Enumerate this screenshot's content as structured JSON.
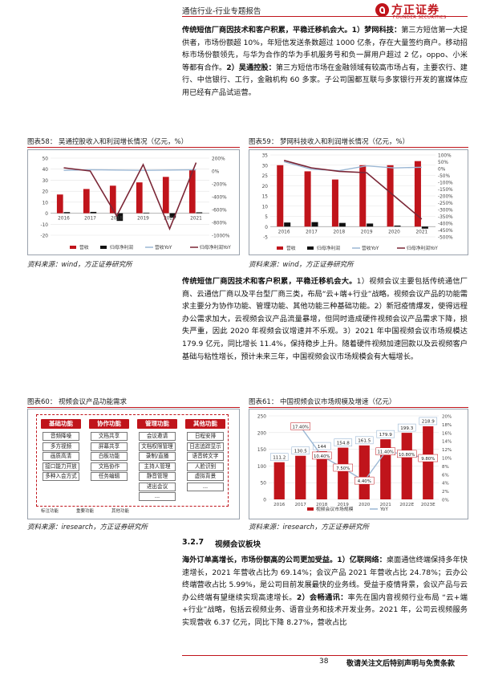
{
  "header": {
    "title": "通信行业-行业专题报告",
    "logo_cn": "方正证券",
    "logo_en": "FOUNDER SECURITIES"
  },
  "para1": {
    "lead": "传统短信厂商因技术和客户积累，平稳迁移机会大。1）梦网科技：",
    "body": "第三方短信第一大提供者，市场份额超 10%，年短信发送条数超过 1000 亿条，存在大量签约商户。移动招标市场份额领先，与华为合作的华为手机服务号和负一屏用户超过 2 亿，oppo、小米等都有合作。",
    "lead2": "2）吴通控股：",
    "body2": "第三方短信市场在金融领域有较高市场占有，主要农行、建行、中信银行、工行，金融机构 60 多家。子公司国都互联与多家银行开发的富媒体应用已经有产品试运营。"
  },
  "fig58": {
    "title": "图表58：  吴通控股收入和利润增长情况（亿元，%）",
    "source": "资料来源：wind，方正证券研究所"
  },
  "fig59": {
    "title": "图表59：  梦网科技收入和利润增长情况（亿元，%）",
    "source": "资料来源：wind，方正证券研究所"
  },
  "para2": {
    "lead": "传统短信厂商因技术和客户积累，平稳迁移机会大。",
    "body": "1）视频会议主要包括传统通信厂商、云通信厂商以及平台型厂商三类，布局“云+端+行业”战略。视频会议产品的功能需求主要分为协作功能、管理功能、其他功能三种基础功能。2）新冠疫情爆发，使得远程办公需求加大，云视频会议产品流量暴增，但同时造成硬件视频会议产品需求下降，损失严重，因此 2020 年视频会议增速并不乐观。3）2021 年中国视频会议市场规模达 179.9 亿元，同比增长 11.4%，保持稳步上升。随着硬件视频加速回款以及云视频客户基础与粘性增长，预计未来三年，中国视频会议市场规模会有大幅增长。"
  },
  "fig60": {
    "title": "图表60：  视频会议产品功能需求",
    "source": "资料来源：iresearch，方正证券研究所",
    "root": "基础功能",
    "columns": [
      {
        "head": "基础功能",
        "items": [
          "音频降噪",
          "多方视频",
          "画质高清",
          "接口能力开放",
          "多种入会方式"
        ]
      },
      {
        "head": "协作功能",
        "items": [
          "文档共享",
          "屏幕共享",
          "白板功能",
          "文档协作",
          "任务编辑"
        ]
      },
      {
        "head": "管理功能",
        "items": [
          "会议邀请",
          "文档权限管理",
          "录制/直播",
          "主持人管理",
          "静音管理",
          "进出会议",
          "..."
        ]
      },
      {
        "head": "其他功能",
        "items": [
          "日程安排",
          "日志追踪显示",
          "语音转文字",
          "人脸识别",
          "虚拟背景",
          "..."
        ]
      }
    ],
    "legend_a": "标注功能",
    "legend_b": "重要功能",
    "legend_c": "其他功能"
  },
  "fig61": {
    "title": "图表61：  中国视频会议市场规模及增速（亿元）",
    "source": "资料来源：iresearch，方正证券研究所"
  },
  "section": {
    "number": "3.2.7",
    "name": "视频会议板块"
  },
  "para3": {
    "lead": "海外订单高增长，市场份额高的公司更加受益。1）亿联网络：",
    "body": "桌面通信终端保持多年快速增长，2021 年营收占比为 69.14%；会议产品 2021 年营收占比 24.78%；云办公终端营收占比 5.99%，是公司目前发展最快的业务线。受益于疫情背景，会议产品与云办公终端有望继续实现高速增长。",
    "lead2": "2）会畅通讯：",
    "body2": "率先在国内音视频行业布局 “云+端+行业”战略，包括云视频业务、语音业务和技术开发业务。2021 年，公司云视频服务实现营收 6.37 亿元，同比下降 8.27%，营收占比"
  },
  "footer": {
    "page": "38",
    "note": "敬请关注文后特别声明与免责条款"
  },
  "chart_data": [
    {
      "id": "fig58",
      "type": "bar",
      "categories": [
        "2016",
        "2017",
        "2018",
        "2019",
        "2020",
        "2021"
      ],
      "y_left_ticks": [
        "50",
        "40",
        "30",
        "20",
        "10",
        "0",
        "-10",
        "-20"
      ],
      "y_right_ticks": [
        "200%",
        "0%",
        "-200%",
        "-400%",
        "-600%",
        "-800%",
        "-1000%"
      ],
      "ylim_left": [
        -20,
        50
      ],
      "ylim_right": [
        -1000,
        200
      ],
      "series": [
        {
          "name": "营收",
          "kind": "bar",
          "color": "#c0141b",
          "values": [
            17,
            22,
            25,
            28,
            33,
            39
          ]
        },
        {
          "name": "归母净利润",
          "kind": "bar",
          "color": "#111111",
          "values": [
            1,
            1.2,
            -7,
            0.5,
            -4,
            0.8
          ]
        },
        {
          "name": "营收YoY",
          "kind": "line",
          "color": "#9bb7d4",
          "values": [
            10,
            20,
            15,
            10,
            15,
            20
          ]
        },
        {
          "name": "归母净利润YoY",
          "kind": "line",
          "color": "#7b2636",
          "values": [
            50,
            0,
            -700,
            100,
            -900,
            130
          ]
        }
      ],
      "legend": "bottom"
    },
    {
      "id": "fig59",
      "type": "bar",
      "categories": [
        "2016",
        "2017",
        "2018",
        "2019",
        "2020",
        "2021"
      ],
      "y_left_ticks": [
        "35",
        "30",
        "25",
        "20",
        "15",
        "10",
        "5",
        "0",
        "-5"
      ],
      "y_right_ticks": [
        "100%",
        "50%",
        "0%",
        "-50%",
        "-100%",
        "-150%",
        "-200%",
        "-250%",
        "-300%",
        "-350%",
        "-400%",
        "-450%",
        "-500%"
      ],
      "ylim_left": [
        -5,
        35
      ],
      "ylim_right": [
        -500,
        100
      ],
      "series": [
        {
          "name": "营收",
          "kind": "bar",
          "color": "#c0141b",
          "values": [
            30,
            27,
            23,
            30,
            30,
            32
          ]
        },
        {
          "name": "归母净利润",
          "kind": "bar",
          "color": "#111111",
          "values": [
            2,
            2.2,
            1.8,
            1.5,
            0.5,
            -1
          ]
        },
        {
          "name": "营收YoY",
          "kind": "line",
          "color": "#9bb7d4",
          "values": [
            50,
            -5,
            -15,
            20,
            5,
            10
          ]
        },
        {
          "name": "归母净利润YoY",
          "kind": "line",
          "color": "#7b2636",
          "values": [
            60,
            5,
            -20,
            -30,
            -200,
            -370
          ]
        }
      ],
      "legend": "bottom"
    },
    {
      "id": "fig61",
      "type": "bar",
      "categories": [
        "2016",
        "2017",
        "2018",
        "2019",
        "2020",
        "2021",
        "2022E",
        "2023E"
      ],
      "y_left_ticks": [
        "250",
        "200",
        "150",
        "100",
        "50",
        "0"
      ],
      "y_right_ticks": [
        "20%",
        "18%",
        "16%",
        "14%",
        "12%",
        "10%",
        "8%",
        "6%",
        "4%",
        "2%",
        "0%"
      ],
      "ylim_left": [
        0,
        250
      ],
      "ylim_right": [
        0,
        20
      ],
      "series": [
        {
          "name": "视频会议市场规模",
          "kind": "bar",
          "color": "#c0141b",
          "values": [
            111.2,
            130.5,
            144,
            154.8,
            161.5,
            179.9,
            199.3,
            218.9
          ],
          "labels": [
            "111.2",
            "130.5",
            "144",
            "154.8",
            "161.5",
            "179.9",
            "199.3",
            "218.9"
          ]
        },
        {
          "name": "YoY",
          "kind": "line",
          "color": "#9bb7d4",
          "values": [
            null,
            17.4,
            10.4,
            7.5,
            4.4,
            11.4,
            10.8,
            9.8
          ],
          "labels": [
            "",
            "17.40%",
            "10.40%",
            "7.50%",
            "4.40%",
            "11.40%",
            "10.80%",
            "9.80%"
          ]
        }
      ],
      "legend": "bottom"
    }
  ]
}
